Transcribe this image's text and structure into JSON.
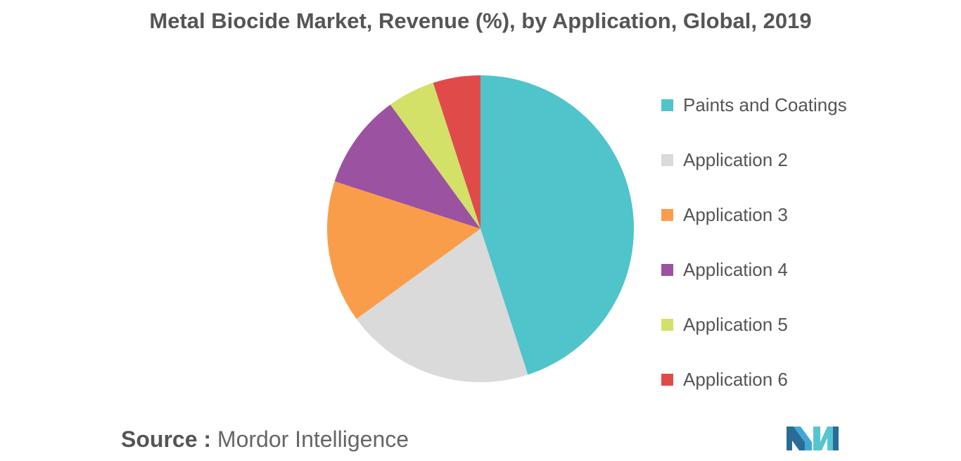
{
  "chart_data": {
    "type": "pie",
    "title": "Metal Biocide Market, Revenue (%), by Application, Global, 2019",
    "categories": [
      "Paints and Coatings",
      "Application 2",
      "Application 3",
      "Application 4",
      "Application 5",
      "Application 6"
    ],
    "values": [
      45,
      20,
      15,
      10,
      5,
      5
    ],
    "colors": [
      "#4fc4ca",
      "#dadada",
      "#fa9d4a",
      "#9b52a1",
      "#d3e169",
      "#e04b4a"
    ],
    "legend_position": "right"
  },
  "source": {
    "label": "Source :",
    "text": "Mordor Intelligence"
  },
  "logo": {
    "icon": "mordor-intelligence-logo"
  }
}
